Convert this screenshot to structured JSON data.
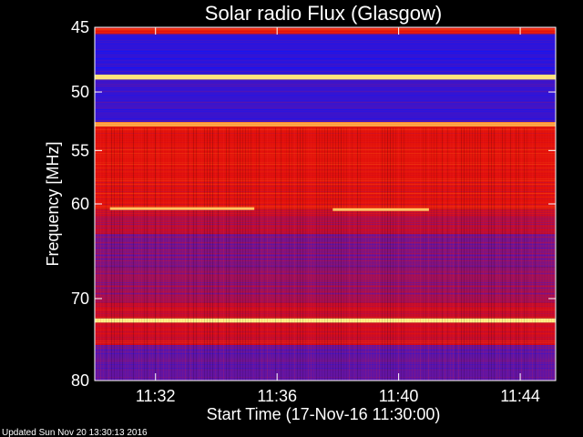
{
  "chart_data": {
    "type": "heatmap",
    "title": "Solar radio Flux (Glasgow)",
    "xlabel": "Start Time (17-Nov-16 11:30:00)",
    "ylabel": "Frequency [MHz]",
    "x_range": [
      "11:30:00",
      "11:45:10"
    ],
    "y_range": [
      45,
      80
    ],
    "x_ticks": [
      "11:32",
      "11:36",
      "11:40",
      "11:44"
    ],
    "y_ticks": [
      45,
      50,
      55,
      60,
      70,
      80
    ],
    "y_scale": "log",
    "colormap": "blue-red-yellow",
    "bands": [
      {
        "from": 45.0,
        "to": 45.5,
        "level": 0.55
      },
      {
        "from": 45.5,
        "to": 48.6,
        "level": 0.08
      },
      {
        "from": 48.6,
        "to": 49.0,
        "level": 0.95
      },
      {
        "from": 49.0,
        "to": 52.5,
        "level": 0.12
      },
      {
        "from": 52.5,
        "to": 52.9,
        "level": 0.85
      },
      {
        "from": 52.9,
        "to": 60.5,
        "level": 0.52
      },
      {
        "from": 60.5,
        "to": 63.0,
        "level": 0.42
      },
      {
        "from": 63.0,
        "to": 66.5,
        "level": 0.28
      },
      {
        "from": 66.5,
        "to": 70.5,
        "level": 0.34
      },
      {
        "from": 70.5,
        "to": 72.3,
        "level": 0.45
      },
      {
        "from": 72.3,
        "to": 72.8,
        "level": 0.97
      },
      {
        "from": 72.8,
        "to": 75.5,
        "level": 0.46
      },
      {
        "from": 75.5,
        "to": 80.0,
        "level": 0.22
      }
    ],
    "bursts": [
      {
        "freq": 60.5,
        "start": "11:30:30",
        "end": "11:35:15",
        "level": 0.9
      },
      {
        "freq": 60.6,
        "start": "11:37:50",
        "end": "11:41:00",
        "level": 0.9
      }
    ],
    "colors": {
      "low": "#1a1aff",
      "mid": "#e81010",
      "high": "#ffff80"
    }
  },
  "footer": "Updated Sun Nov 20 13:30:13 2016"
}
